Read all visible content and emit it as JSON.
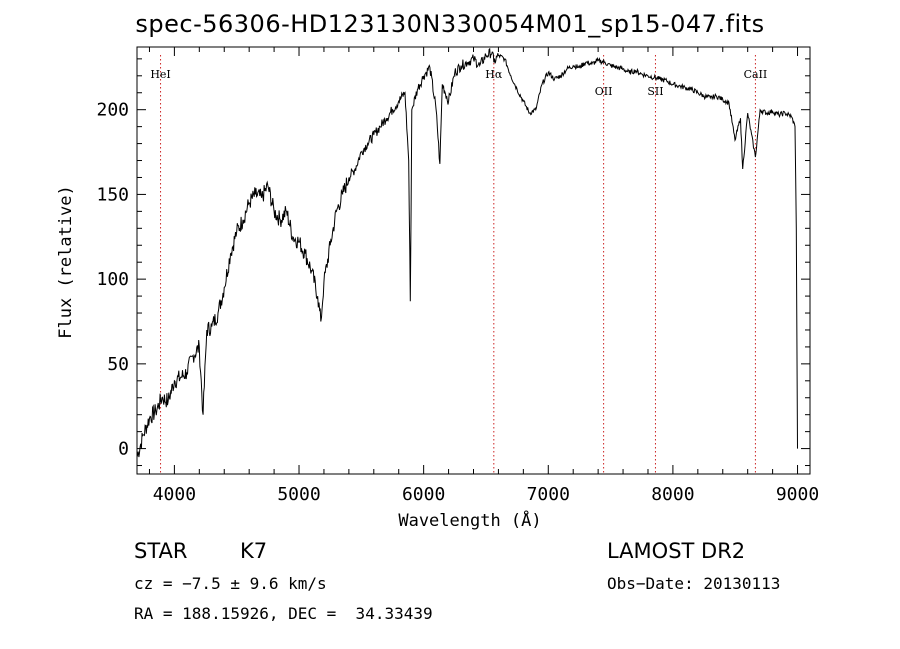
{
  "chart_data": {
    "type": "line",
    "title": "spec-56306-HD123130N330054M01_sp15-047.fits",
    "xlabel": "Wavelength (Å)",
    "ylabel": "Flux (relative)",
    "xlim": [
      3700,
      9100
    ],
    "ylim": [
      -15,
      237
    ],
    "x_ticks": [
      4000,
      5000,
      6000,
      7000,
      8000,
      9000
    ],
    "y_ticks": [
      0,
      50,
      100,
      150,
      200
    ],
    "grid": false,
    "line_color": "#000000",
    "marker_color": "#cc2222",
    "lines": [
      {
        "name": "HeI",
        "x": 3889
      },
      {
        "name": "Hα",
        "x": 6563
      },
      {
        "name": "OII",
        "x": 7444
      },
      {
        "name": "SII",
        "x": 7860
      },
      {
        "name": "CaII",
        "x": 8662
      }
    ],
    "series": [
      {
        "x": [
          3700,
          3750,
          3800,
          3850,
          3900,
          3950,
          4000,
          4050,
          4100,
          4150,
          4200,
          4230,
          4260,
          4300,
          4350,
          4400,
          4450,
          4500,
          4550,
          4600,
          4650,
          4700,
          4750,
          4800,
          4850,
          4900,
          4950,
          5000,
          5050,
          5100,
          5150,
          5175,
          5200,
          5250,
          5300,
          5350,
          5400,
          5450,
          5500,
          5550,
          5600,
          5650,
          5700,
          5750,
          5800,
          5850,
          5880,
          5893,
          5905,
          5950,
          6000,
          6050,
          6100,
          6130,
          6150,
          6200,
          6250,
          6300,
          6350,
          6400,
          6450,
          6500,
          6550,
          6563,
          6600,
          6650,
          6700,
          6750,
          6800,
          6850,
          6900,
          6950,
          7000,
          7050,
          7100,
          7150,
          7200,
          7250,
          7300,
          7350,
          7400,
          7450,
          7500,
          7550,
          7600,
          7650,
          7700,
          7750,
          7800,
          7850,
          7900,
          7950,
          8000,
          8050,
          8100,
          8150,
          8200,
          8250,
          8300,
          8350,
          8400,
          8450,
          8498,
          8542,
          8560,
          8600,
          8662,
          8700,
          8750,
          8800,
          8850,
          8900,
          8950,
          8980,
          8990,
          9000
        ],
        "values": [
          -5,
          8,
          18,
          22,
          30,
          28,
          40,
          42,
          45,
          55,
          60,
          20,
          70,
          72,
          80,
          95,
          115,
          128,
          135,
          145,
          150,
          148,
          155,
          140,
          135,
          140,
          125,
          122,
          115,
          105,
          90,
          75,
          98,
          120,
          140,
          150,
          160,
          165,
          175,
          180,
          185,
          190,
          195,
          200,
          205,
          210,
          170,
          87,
          200,
          212,
          220,
          225,
          200,
          168,
          215,
          205,
          222,
          226,
          228,
          230,
          226,
          232,
          234,
          228,
          232,
          230,
          220,
          212,
          205,
          198,
          200,
          215,
          222,
          218,
          220,
          224,
          226,
          225,
          228,
          227,
          229,
          228,
          226,
          225,
          224,
          222,
          223,
          221,
          220,
          219,
          218,
          217,
          215,
          214,
          213,
          212,
          210,
          208,
          207,
          208,
          206,
          204,
          182,
          195,
          165,
          198,
          172,
          200,
          198,
          199,
          197,
          198,
          196,
          190,
          130,
          0
        ]
      }
    ]
  },
  "info": {
    "object_type": "STAR",
    "subclass": "K7",
    "survey": "LAMOST DR2",
    "cz": "cz = −7.5 ± 9.6 km/s",
    "obs_date": "Obs−Date: 20130113",
    "radec": "RA = 188.15926, DEC =  34.33439"
  }
}
